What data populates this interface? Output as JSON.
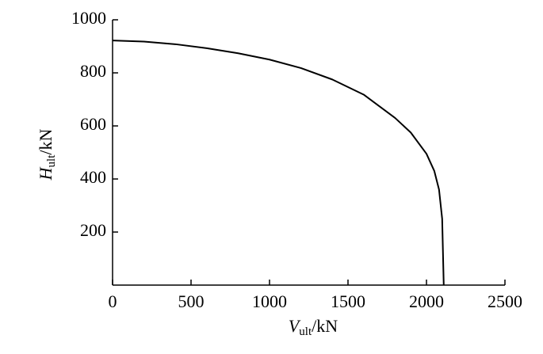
{
  "chart_data": {
    "type": "line",
    "x_label": {
      "symbol": "V",
      "subscript": "ult",
      "unit": "/kN"
    },
    "y_label": {
      "symbol": "H",
      "subscript": "ult",
      "unit": "/kN"
    },
    "x": [
      0,
      200,
      400,
      600,
      800,
      1000,
      1200,
      1400,
      1600,
      1800,
      1900,
      2000,
      2050,
      2080,
      2100,
      2110
    ],
    "series": [
      {
        "color": "#000000",
        "values": [
          922,
          918,
          908,
          893,
          874,
          850,
          818,
          775,
          718,
          630,
          575,
          495,
          430,
          360,
          250,
          0
        ]
      }
    ],
    "xlim": [
      0,
      2500
    ],
    "xticks": [
      0,
      500,
      1000,
      1500,
      2000,
      2500
    ],
    "ylim": [
      0,
      1000
    ],
    "yticks": [
      200,
      400,
      600,
      800,
      1000
    ]
  }
}
